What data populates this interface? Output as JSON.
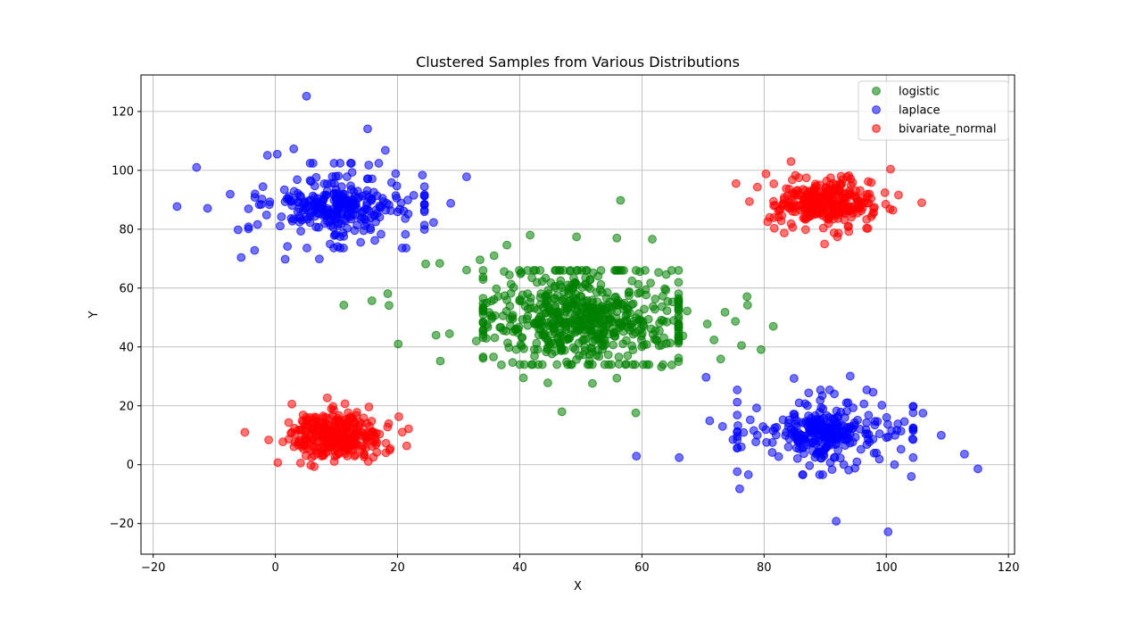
{
  "chart_data": {
    "type": "scatter",
    "title": "Clustered Samples from Various Distributions",
    "xlabel": "X",
    "ylabel": "Y",
    "xlim": [
      -22,
      121
    ],
    "ylim": [
      -30.4,
      132.4
    ],
    "xticks": [
      -20,
      0,
      20,
      40,
      60,
      80,
      100,
      120
    ],
    "yticks": [
      -20,
      0,
      20,
      40,
      60,
      80,
      100,
      120
    ],
    "grid": true,
    "legend_position": "top-right",
    "series": [
      {
        "name": "logistic",
        "color": "#008000",
        "alpha": 0.55,
        "clusters": [
          {
            "center_x": 50,
            "center_y": 50,
            "scale_x": 5.0,
            "scale_y": 5.0,
            "dist": "logistic",
            "count": 600
          }
        ],
        "points": [
          [
            56.5,
            89.8
          ],
          [
            41.7,
            78
          ],
          [
            61.7,
            76.6
          ],
          [
            37.9,
            74.6
          ],
          [
            55.9,
            77.0
          ],
          [
            49.3,
            77.4
          ],
          [
            24.6,
            68.2
          ],
          [
            26.9,
            68.4
          ],
          [
            31.3,
            66.1
          ],
          [
            35.8,
            71.0
          ],
          [
            18.4,
            58.1
          ],
          [
            15.8,
            55.7
          ],
          [
            18.6,
            54.1
          ],
          [
            11.2,
            54.2
          ],
          [
            20.1,
            41.0
          ],
          [
            27.0,
            35.2
          ],
          [
            26.3,
            44.0
          ],
          [
            28.5,
            44.5
          ],
          [
            46.9,
            18.0
          ],
          [
            59.0,
            17.6
          ],
          [
            81.5,
            47.0
          ],
          [
            79.5,
            39.1
          ],
          [
            77.3,
            54.2
          ],
          [
            77.2,
            57.1
          ],
          [
            75.3,
            48.7
          ],
          [
            73.6,
            51.8
          ],
          [
            72.9,
            35.9
          ],
          [
            70.7,
            47.8
          ],
          [
            71.8,
            42.4
          ],
          [
            76.3,
            40.5
          ],
          [
            33.5,
            69.6
          ],
          [
            32.9,
            42.0
          ],
          [
            35.7,
            36.6
          ],
          [
            37.0,
            33.9
          ],
          [
            40.6,
            29.5
          ],
          [
            44.6,
            27.8
          ],
          [
            51.9,
            27.6
          ],
          [
            55.9,
            29.4
          ],
          [
            63.2,
            33.2
          ],
          [
            64.9,
            33.9
          ],
          [
            66.7,
            43.8
          ],
          [
            67.4,
            52.2
          ]
        ]
      },
      {
        "name": "laplace",
        "color": "#0000ff",
        "alpha": 0.55,
        "clusters": [
          {
            "center_x": 10,
            "center_y": 88,
            "scale_x": 4.5,
            "scale_y": 4.5,
            "dist": "laplace",
            "count": 300
          },
          {
            "center_x": 90,
            "center_y": 11,
            "scale_x": 4.5,
            "scale_y": 4.5,
            "dist": "laplace",
            "count": 300
          }
        ],
        "points": [
          [
            5.1,
            125.2
          ],
          [
            15.1,
            114.1
          ],
          [
            3.0,
            107.3
          ],
          [
            -12.9,
            101.0
          ],
          [
            0.3,
            105.5
          ],
          [
            -1.3,
            105.1
          ],
          [
            -16.1,
            87.7
          ],
          [
            -11.1,
            87.1
          ],
          [
            -7.4,
            91.9
          ],
          [
            -6.1,
            79.8
          ],
          [
            -5.6,
            70.4
          ],
          [
            -3.4,
            72.8
          ],
          [
            1.6,
            69.8
          ],
          [
            7.2,
            69.9
          ],
          [
            28.7,
            88.8
          ],
          [
            31.3,
            97.8
          ],
          [
            25.9,
            82.3
          ],
          [
            18.0,
            106.8
          ],
          [
            91.8,
            -19.2
          ],
          [
            100.3,
            -22.8
          ],
          [
            112.8,
            3.6
          ],
          [
            115.0,
            -1.4
          ],
          [
            109.0,
            10.0
          ],
          [
            106.0,
            17.5
          ],
          [
            104.1,
            -4.0
          ],
          [
            76.0,
            -8.2
          ],
          [
            70.5,
            29.7
          ],
          [
            66.1,
            2.4
          ],
          [
            59.1,
            2.9
          ],
          [
            94.1,
            30.1
          ],
          [
            87.3,
            24.4
          ],
          [
            84.9,
            29.3
          ],
          [
            71.1,
            14.9
          ],
          [
            73.2,
            13.0
          ],
          [
            74.9,
            8.5
          ]
        ]
      },
      {
        "name": "bivariate_normal",
        "color": "#ff0000",
        "alpha": 0.55,
        "clusters": [
          {
            "center_x": 10,
            "center_y": 10,
            "scale_x": 3.8,
            "scale_y": 3.8,
            "dist": "normal",
            "count": 300
          },
          {
            "center_x": 90,
            "center_y": 89,
            "scale_x": 3.8,
            "scale_y": 3.8,
            "dist": "normal",
            "count": 300
          }
        ],
        "points": [
          [
            -5.0,
            11.0
          ],
          [
            -1.1,
            8.4
          ],
          [
            0.4,
            0.7
          ],
          [
            2.7,
            20.6
          ],
          [
            5.8,
            -0.2
          ],
          [
            8.5,
            22.7
          ],
          [
            21.5,
            6.4
          ],
          [
            21.8,
            12.2
          ],
          [
            20.2,
            16.3
          ],
          [
            18.7,
            4.9
          ],
          [
            15.2,
            1.1
          ],
          [
            105.8,
            89.0
          ],
          [
            102.0,
            91.6
          ],
          [
            100.7,
            100.4
          ],
          [
            97.0,
            80.3
          ],
          [
            89.9,
            75.0
          ],
          [
            84.4,
            103.0
          ],
          [
            80.3,
            98.8
          ],
          [
            75.4,
            95.5
          ],
          [
            77.6,
            89.4
          ],
          [
            78.9,
            94.3
          ],
          [
            80.9,
            84.0
          ],
          [
            83.3,
            78.7
          ],
          [
            92.0,
            77.4
          ]
        ]
      }
    ]
  }
}
